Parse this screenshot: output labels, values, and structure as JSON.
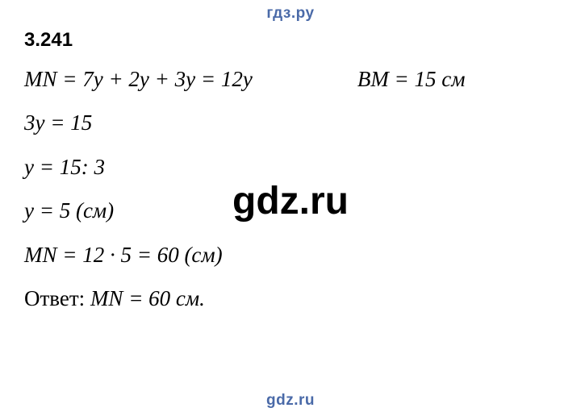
{
  "header": "гдз.ру",
  "watermark_mid": "gdz.ru",
  "watermark_bottom": "gdz.ru",
  "problem": {
    "number": "3.241",
    "line_mn_expr": "MN = 7y + 2y + 3y = 12y",
    "line_bm": "BM = 15 см",
    "line_eq": "3y = 15",
    "line_div": "y = 15: 3",
    "line_y": "y = 5 (см)",
    "line_result": "MN = 12 · 5 = 60 (см)",
    "answer_label": "Ответ:",
    "answer_value": "MN = 60 см."
  },
  "colors": {
    "header": "#4a6aa8",
    "text": "#000000",
    "background": "#ffffff"
  },
  "typography": {
    "header_font": "Arial",
    "body_font": "Cambria Math / Times New Roman",
    "problem_number_size_pt": 18,
    "body_size_pt": 20,
    "watermark_mid_size_pt": 36
  }
}
